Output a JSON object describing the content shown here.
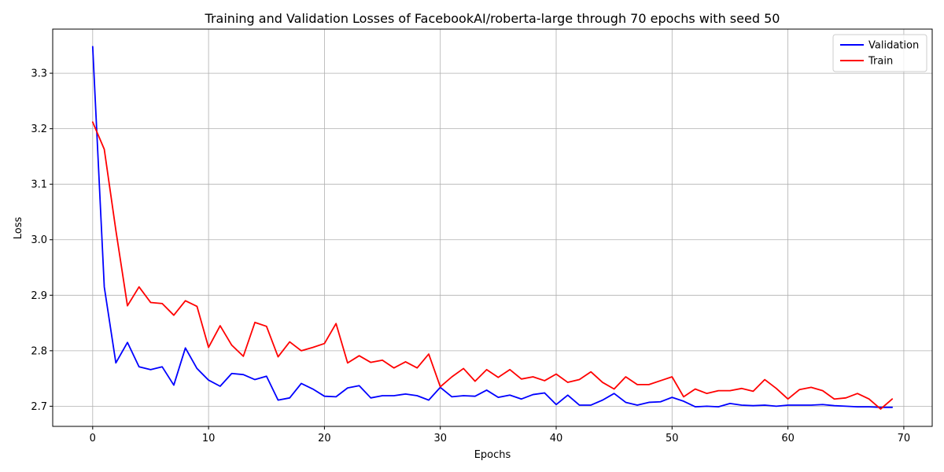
{
  "chart_data": {
    "type": "line",
    "title": "Training and Validation Losses of FacebookAI/roberta-large through 70 epochs with seed 50",
    "xlabel": "Epochs",
    "ylabel": "Loss",
    "xlim": [
      -3.45,
      72.45
    ],
    "ylim": [
      2.6637,
      3.3795
    ],
    "xticks": [
      0,
      10,
      20,
      30,
      40,
      50,
      60,
      70
    ],
    "yticks": [
      2.7,
      2.8,
      2.9,
      3.0,
      3.1,
      3.2,
      3.3
    ],
    "ytick_labels": [
      "2.7",
      "2.8",
      "2.9",
      "3.0",
      "3.1",
      "3.2",
      "3.3"
    ],
    "grid": true,
    "legend_position": "top-right",
    "x": [
      0,
      1,
      2,
      3,
      4,
      5,
      6,
      7,
      8,
      9,
      10,
      11,
      12,
      13,
      14,
      15,
      16,
      17,
      18,
      19,
      20,
      21,
      22,
      23,
      24,
      25,
      26,
      27,
      28,
      29,
      30,
      31,
      32,
      33,
      34,
      35,
      36,
      37,
      38,
      39,
      40,
      41,
      42,
      43,
      44,
      45,
      46,
      47,
      48,
      49,
      50,
      51,
      52,
      53,
      54,
      55,
      56,
      57,
      58,
      59,
      60,
      61,
      62,
      63,
      64,
      65,
      66,
      67,
      68,
      69
    ],
    "series": [
      {
        "name": "Validation",
        "color": "#0000ff",
        "values": [
          3.348,
          2.915,
          2.778,
          2.815,
          2.771,
          2.766,
          2.771,
          2.738,
          2.805,
          2.768,
          2.747,
          2.736,
          2.759,
          2.757,
          2.748,
          2.754,
          2.711,
          2.715,
          2.741,
          2.731,
          2.718,
          2.717,
          2.733,
          2.737,
          2.715,
          2.719,
          2.719,
          2.722,
          2.719,
          2.711,
          2.734,
          2.717,
          2.719,
          2.718,
          2.729,
          2.716,
          2.72,
          2.713,
          2.721,
          2.724,
          2.703,
          2.72,
          2.702,
          2.702,
          2.711,
          2.723,
          2.707,
          2.702,
          2.707,
          2.708,
          2.716,
          2.709,
          2.699,
          2.7,
          2.699,
          2.705,
          2.702,
          2.701,
          2.702,
          2.7,
          2.702,
          2.702,
          2.702,
          2.703,
          2.701,
          2.7,
          2.699,
          2.699,
          2.698,
          2.698
        ]
      },
      {
        "name": "Train",
        "color": "#ff0000",
        "values": [
          3.212,
          3.163,
          3.017,
          2.881,
          2.915,
          2.887,
          2.885,
          2.864,
          2.89,
          2.88,
          2.806,
          2.845,
          2.81,
          2.79,
          2.851,
          2.844,
          2.789,
          2.816,
          2.8,
          2.806,
          2.813,
          2.849,
          2.778,
          2.791,
          2.779,
          2.783,
          2.769,
          2.78,
          2.769,
          2.794,
          2.735,
          2.753,
          2.768,
          2.745,
          2.766,
          2.752,
          2.766,
          2.749,
          2.753,
          2.746,
          2.758,
          2.743,
          2.748,
          2.762,
          2.743,
          2.731,
          2.753,
          2.739,
          2.739,
          2.746,
          2.753,
          2.717,
          2.731,
          2.723,
          2.728,
          2.728,
          2.732,
          2.727,
          2.748,
          2.732,
          2.713,
          2.73,
          2.734,
          2.728,
          2.713,
          2.715,
          2.723,
          2.713,
          2.695,
          2.713
        ]
      }
    ]
  }
}
